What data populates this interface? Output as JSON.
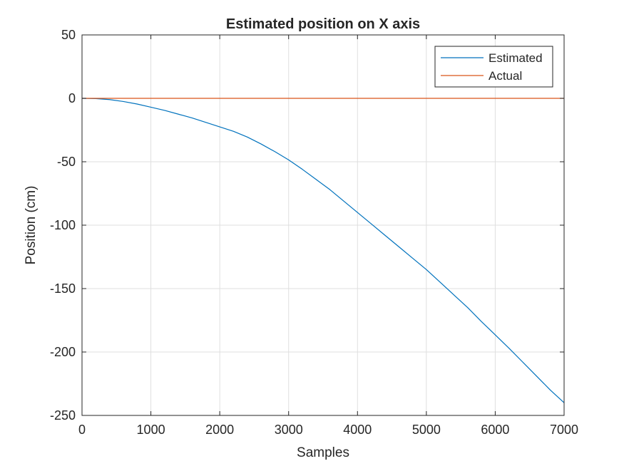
{
  "chart_data": {
    "type": "line",
    "title": "Estimated position on X axis",
    "xlabel": "Samples",
    "ylabel": "Position (cm)",
    "xlim": [
      0,
      7000
    ],
    "ylim": [
      -250,
      50
    ],
    "x_ticks": [
      0,
      1000,
      2000,
      3000,
      4000,
      5000,
      6000,
      7000
    ],
    "y_ticks": [
      50,
      0,
      -50,
      -100,
      -150,
      -200,
      -250
    ],
    "grid": true,
    "legend_position": "top-right",
    "series": [
      {
        "name": "Estimated",
        "color": "#0072BD",
        "x": [
          0,
          200,
          400,
          600,
          800,
          1000,
          1200,
          1400,
          1600,
          1800,
          2000,
          2200,
          2400,
          2600,
          2800,
          3000,
          3200,
          3400,
          3600,
          3800,
          4000,
          4200,
          4400,
          4600,
          4800,
          5000,
          5200,
          5400,
          5600,
          5800,
          6000,
          6200,
          6400,
          6600,
          6800,
          7000
        ],
        "y": [
          0,
          -0.2,
          -1,
          -2.5,
          -4.5,
          -7,
          -9.5,
          -12.5,
          -15.5,
          -19,
          -22.5,
          -26,
          -30.5,
          -36,
          -42,
          -48.5,
          -56,
          -64,
          -72,
          -81,
          -90,
          -99,
          -108,
          -117,
          -126,
          -135,
          -145,
          -155,
          -165,
          -176,
          -186.5,
          -197,
          -208,
          -219,
          -230,
          -240
        ]
      },
      {
        "name": "Actual",
        "color": "#D95319",
        "x": [
          0,
          7000
        ],
        "y": [
          0,
          0
        ]
      }
    ]
  }
}
